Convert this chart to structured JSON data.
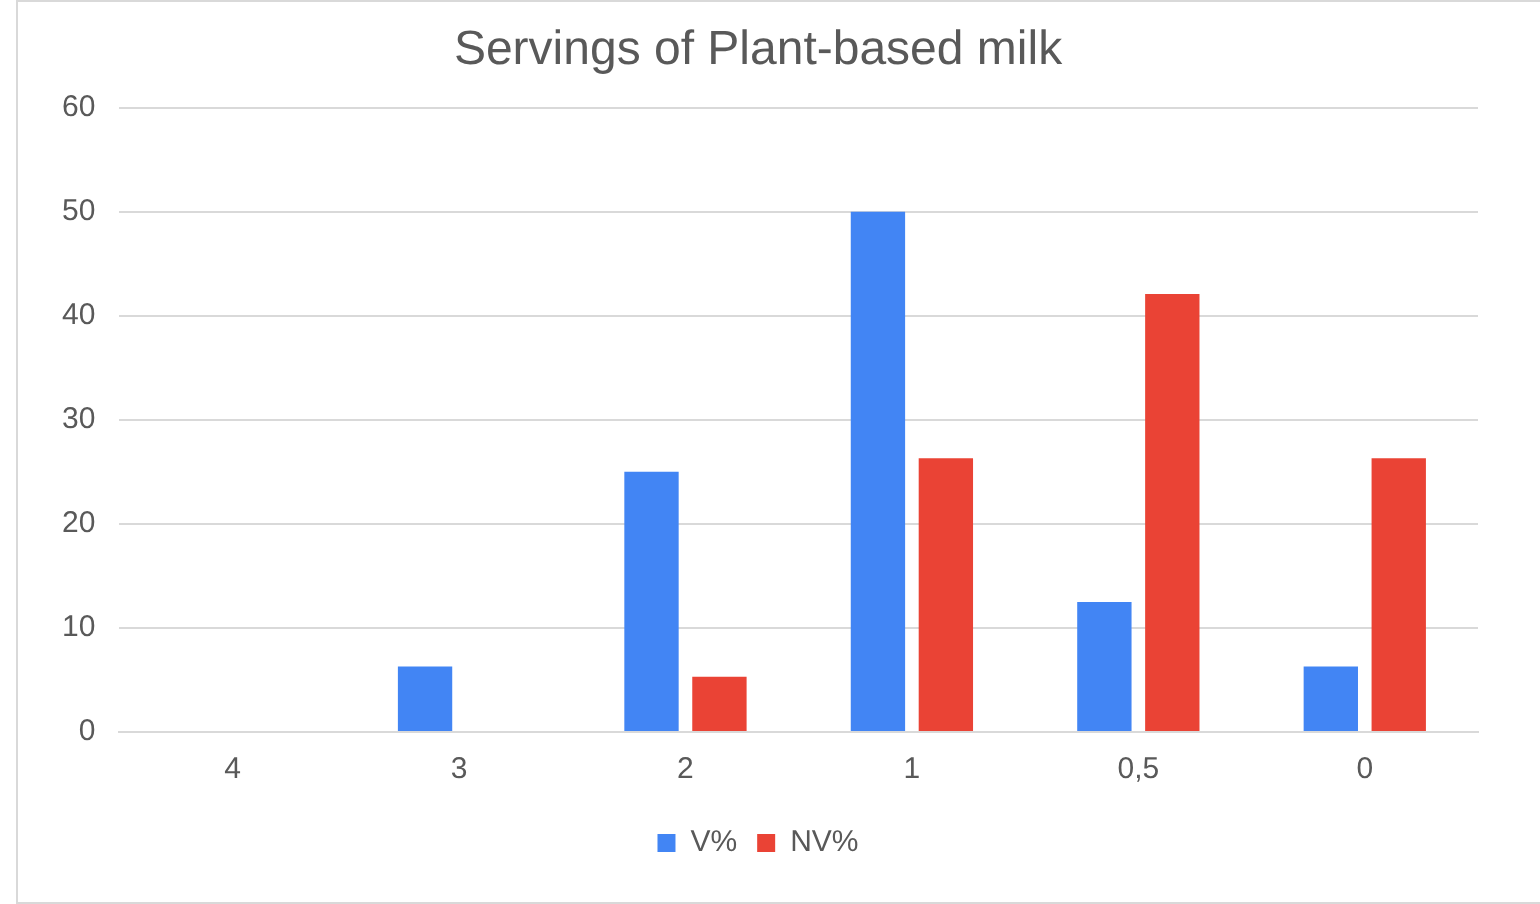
{
  "chart_data": {
    "type": "bar",
    "title": "Servings of Plant-based milk",
    "categories": [
      "4",
      "3",
      "2",
      "1",
      "0,5",
      "0"
    ],
    "series": [
      {
        "name": "V%",
        "color": "#4285f4",
        "values": [
          0,
          6.3,
          25,
          50,
          12.5,
          6.3
        ]
      },
      {
        "name": "NV%",
        "color": "#ea4335",
        "values": [
          0,
          0,
          5.3,
          26.3,
          42.1,
          26.3
        ]
      }
    ],
    "ylim": [
      0,
      60
    ],
    "yticks": [
      0,
      10,
      20,
      30,
      40,
      50,
      60
    ],
    "grid": "y",
    "legend": "bottom"
  }
}
